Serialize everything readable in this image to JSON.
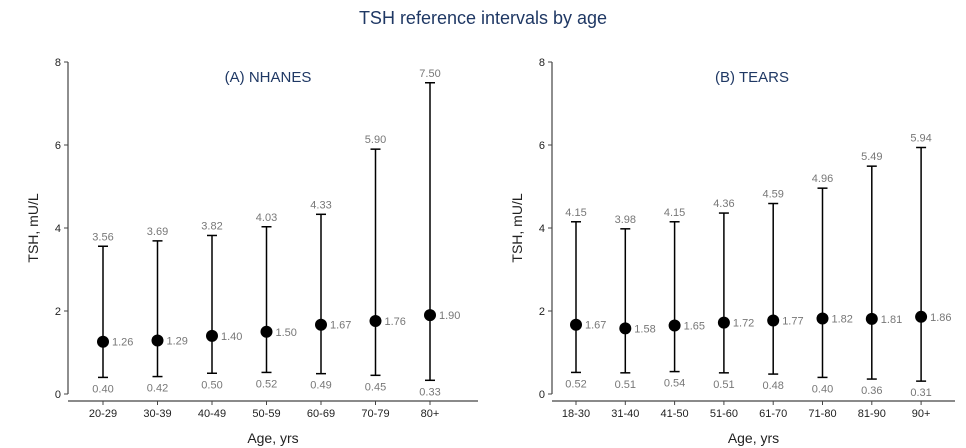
{
  "figure": {
    "title": "TSH reference intervals by age"
  },
  "colors": {
    "title": "#1f3864",
    "panel_title": "#1f3864",
    "axis": "#444444",
    "label_text": "#777777",
    "tick_text": "#222222",
    "marker": "#000000"
  },
  "chart_data": [
    {
      "type": "scatter",
      "title": "(A) NHANES",
      "xlabel": "Age, yrs",
      "ylabel": "TSH, mU/L",
      "ylim": [
        0,
        8
      ],
      "yticks": [
        "0",
        "2",
        "4",
        "6",
        "8"
      ],
      "grid": false,
      "categories": [
        "20-29",
        "30-39",
        "40-49",
        "50-59",
        "60-69",
        "70-79",
        "80+"
      ],
      "median": [
        1.26,
        1.29,
        1.4,
        1.5,
        1.67,
        1.76,
        1.9
      ],
      "lower": [
        0.4,
        0.42,
        0.5,
        0.52,
        0.49,
        0.45,
        0.33
      ],
      "upper": [
        3.56,
        3.69,
        3.82,
        4.03,
        4.33,
        5.9,
        7.5
      ],
      "median_labels": [
        "1.26",
        "1.29",
        "1.40",
        "1.50",
        "1.67",
        "1.76",
        "1.90"
      ],
      "lower_labels": [
        "0.40",
        "0.42",
        "0.50",
        "0.52",
        "0.49",
        "0.45",
        "0.33"
      ],
      "upper_labels": [
        "3.56",
        "3.69",
        "3.82",
        "4.03",
        "4.33",
        "5.90",
        "7.50"
      ]
    },
    {
      "type": "scatter",
      "title": "(B) TEARS",
      "xlabel": "Age, yrs",
      "ylabel": "TSH, mU/L",
      "ylim": [
        0,
        8
      ],
      "yticks": [
        "0",
        "2",
        "4",
        "6",
        "8"
      ],
      "grid": false,
      "categories": [
        "18-30",
        "31-40",
        "41-50",
        "51-60",
        "61-70",
        "71-80",
        "81-90",
        "90+"
      ],
      "median": [
        1.67,
        1.58,
        1.65,
        1.72,
        1.77,
        1.82,
        1.81,
        1.86
      ],
      "lower": [
        0.52,
        0.51,
        0.54,
        0.51,
        0.48,
        0.4,
        0.36,
        0.31
      ],
      "upper": [
        4.15,
        3.98,
        4.15,
        4.36,
        4.59,
        4.96,
        5.49,
        5.94
      ],
      "median_labels": [
        "1.67",
        "1.58",
        "1.65",
        "1.72",
        "1.77",
        "1.82",
        "1.81",
        "1.86"
      ],
      "lower_labels": [
        "0.52",
        "0.51",
        "0.54",
        "0.51",
        "0.48",
        "0.40",
        "0.36",
        "0.31"
      ],
      "upper_labels": [
        "4.15",
        "3.98",
        "4.15",
        "4.36",
        "4.59",
        "4.96",
        "5.49",
        "5.94"
      ]
    }
  ]
}
